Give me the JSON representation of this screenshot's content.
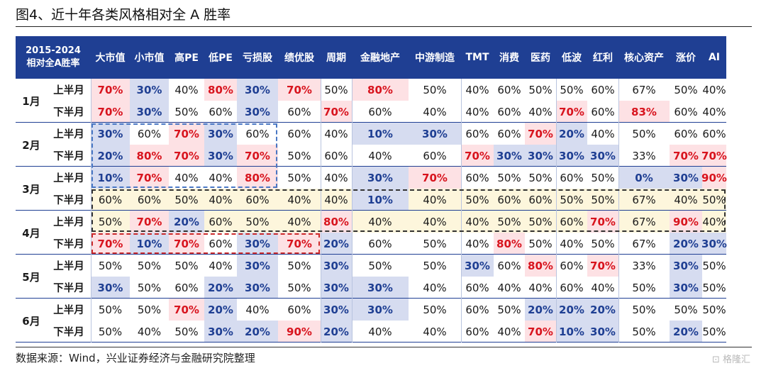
{
  "title": "图4、近十年各类风格相对全 A 胜率",
  "corner_line1": "2015-2024",
  "corner_line2": "相对全A胜率",
  "columns": [
    "大市值",
    "小市值",
    "高PE",
    "低PE",
    "亏损股",
    "绩优股",
    "周期",
    "金融地产",
    "中游制造",
    "TMT",
    "消费",
    "医药",
    "低波",
    "红利",
    "核心资产",
    "涨价",
    "AI"
  ],
  "rows": [
    {
      "month": "1月",
      "half": "上半月",
      "values": [
        "70%",
        "30%",
        "40%",
        "80%",
        "30%",
        "70%",
        "50%",
        "80%",
        "50%",
        "40%",
        "60%",
        "50%",
        "50%",
        "60%",
        "67%",
        "50%",
        "40%"
      ]
    },
    {
      "month": "1月",
      "half": "下半月",
      "values": [
        "70%",
        "30%",
        "50%",
        "60%",
        "30%",
        "60%",
        "70%",
        "60%",
        "40%",
        "40%",
        "60%",
        "40%",
        "70%",
        "60%",
        "83%",
        "60%",
        "40%"
      ]
    },
    {
      "month": "2月",
      "half": "上半月",
      "values": [
        "30%",
        "60%",
        "70%",
        "30%",
        "60%",
        "60%",
        "40%",
        "10%",
        "30%",
        "60%",
        "60%",
        "70%",
        "20%",
        "40%",
        "50%",
        "60%",
        "60%"
      ]
    },
    {
      "month": "2月",
      "half": "下半月",
      "values": [
        "20%",
        "80%",
        "70%",
        "30%",
        "70%",
        "50%",
        "60%",
        "40%",
        "60%",
        "70%",
        "30%",
        "30%",
        "30%",
        "30%",
        "33%",
        "70%",
        "70%"
      ]
    },
    {
      "month": "3月",
      "half": "上半月",
      "values": [
        "10%",
        "70%",
        "40%",
        "40%",
        "80%",
        "50%",
        "40%",
        "30%",
        "70%",
        "60%",
        "50%",
        "50%",
        "60%",
        "50%",
        "0%",
        "30%",
        "90%"
      ]
    },
    {
      "month": "3月",
      "half": "下半月",
      "values": [
        "60%",
        "60%",
        "50%",
        "40%",
        "60%",
        "40%",
        "40%",
        "10%",
        "40%",
        "50%",
        "60%",
        "60%",
        "50%",
        "50%",
        "67%",
        "40%",
        "50%"
      ]
    },
    {
      "month": "4月",
      "half": "上半月",
      "values": [
        "50%",
        "70%",
        "20%",
        "60%",
        "50%",
        "40%",
        "80%",
        "40%",
        "40%",
        "40%",
        "50%",
        "50%",
        "60%",
        "70%",
        "67%",
        "90%",
        "40%"
      ]
    },
    {
      "month": "4月",
      "half": "下半月",
      "values": [
        "70%",
        "10%",
        "70%",
        "60%",
        "30%",
        "70%",
        "20%",
        "60%",
        "50%",
        "40%",
        "80%",
        "50%",
        "40%",
        "50%",
        "67%",
        "20%",
        "30%"
      ]
    },
    {
      "month": "5月",
      "half": "上半月",
      "values": [
        "50%",
        "50%",
        "50%",
        "40%",
        "30%",
        "50%",
        "30%",
        "50%",
        "50%",
        "30%",
        "60%",
        "80%",
        "60%",
        "70%",
        "33%",
        "30%",
        "50%"
      ]
    },
    {
      "month": "5月",
      "half": "下半月",
      "values": [
        "30%",
        "50%",
        "60%",
        "20%",
        "30%",
        "50%",
        "30%",
        "30%",
        "40%",
        "60%",
        "40%",
        "40%",
        "60%",
        "40%",
        "50%",
        "30%",
        "50%"
      ]
    },
    {
      "month": "6月",
      "half": "上半月",
      "values": [
        "50%",
        "50%",
        "70%",
        "20%",
        "40%",
        "60%",
        "30%",
        "30%",
        "50%",
        "60%",
        "50%",
        "20%",
        "20%",
        "20%",
        "50%",
        "50%",
        "50%"
      ]
    },
    {
      "month": "6月",
      "half": "下半月",
      "values": [
        "50%",
        "40%",
        "50%",
        "30%",
        "20%",
        "90%",
        "20%",
        "40%",
        "40%",
        "60%",
        "40%",
        "70%",
        "10%",
        "30%",
        "50%",
        "20%",
        "50%"
      ]
    }
  ],
  "source": "数据来源：Wind，兴业证券经济与金融研究院整理",
  "watermark": "格隆汇",
  "colors": {
    "header_bg": "#1f3f93",
    "high_bg": "#fde1e4",
    "high_text": "#d8141e",
    "low_bg": "#d6dcf0",
    "low_text": "#1f3f93",
    "band_bg": "#fdf6dc",
    "blue_box": "#4a78c4",
    "red_box": "#cc2a2a",
    "dark_box": "#333333"
  }
}
